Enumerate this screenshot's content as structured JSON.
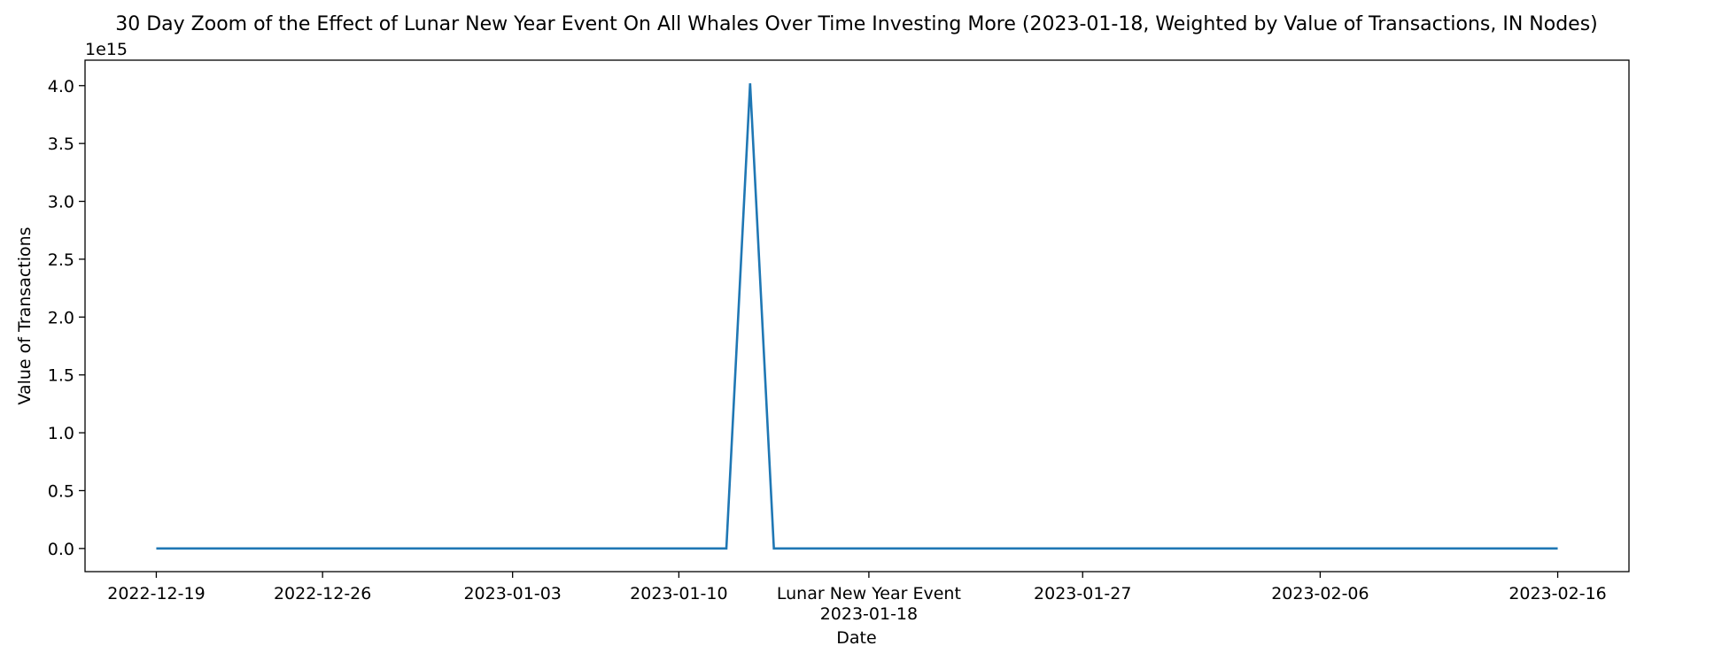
{
  "chart_data": {
    "type": "line",
    "title": "30 Day Zoom of the Effect of Lunar New Year Event On All Whales Over Time Investing More (2023-01-18, Weighted by Value of Transactions, IN Nodes)",
    "xlabel": "Date",
    "ylabel": "Value of Transactions",
    "y_offset_label": "1e15",
    "y_scale_exponent": 15,
    "ylim": [
      -0.2,
      4.22
    ],
    "xlim": [
      "2022-12-16",
      "2023-02-19"
    ],
    "grid": false,
    "legend": "none",
    "line_color": "#1f77b4",
    "x_ticks": [
      {
        "date": "2022-12-19",
        "label": "2022-12-19"
      },
      {
        "date": "2022-12-26",
        "label": "2022-12-26"
      },
      {
        "date": "2023-01-03",
        "label": "2023-01-03"
      },
      {
        "date": "2023-01-10",
        "label": "2023-01-10"
      },
      {
        "date": "2023-01-18",
        "label": "Lunar New Year Event",
        "sublabel": "2023-01-18"
      },
      {
        "date": "2023-01-27",
        "label": "2023-01-27"
      },
      {
        "date": "2023-02-06",
        "label": "2023-02-06"
      },
      {
        "date": "2023-02-16",
        "label": "2023-02-16"
      }
    ],
    "y_ticks": [
      0.0,
      0.5,
      1.0,
      1.5,
      2.0,
      2.5,
      3.0,
      3.5,
      4.0
    ],
    "y_tick_labels": [
      "0.0",
      "0.5",
      "1.0",
      "1.5",
      "2.0",
      "2.5",
      "3.0",
      "3.5",
      "4.0"
    ],
    "series": [
      {
        "x": [
          "2022-12-19",
          "2023-01-12",
          "2023-01-13",
          "2023-01-14",
          "2023-02-16"
        ],
        "values": [
          0.0,
          0.0,
          4.02,
          0.0,
          0.0
        ]
      }
    ]
  }
}
